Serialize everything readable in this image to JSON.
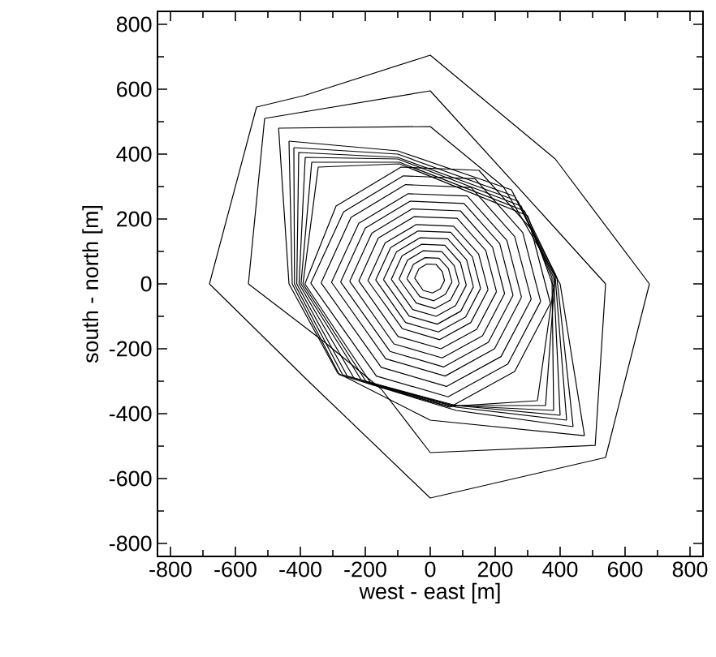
{
  "chart_data": {
    "type": "line",
    "xlabel": "west - east [m]",
    "ylabel": "south - north [m]",
    "xlim": [
      -840,
      840
    ],
    "ylim": [
      -840,
      840
    ],
    "xticks": [
      -800,
      -600,
      -400,
      -200,
      0,
      200,
      400,
      600,
      800
    ],
    "yticks": [
      -800,
      -600,
      -400,
      -200,
      0,
      200,
      400,
      600,
      800
    ],
    "series": [
      {
        "color": "#000000",
        "x": [
          -680,
          -535,
          -390,
          0,
          385,
          675
        ],
        "values": [
          0,
          545,
          580,
          705,
          385,
          0
        ]
      },
      {
        "color": "#000000",
        "x": [
          -680,
          -375,
          0,
          540,
          675
        ],
        "values": [
          0,
          -300,
          -660,
          -535,
          0
        ]
      },
      {
        "color": "#000000",
        "x": [
          -560,
          -510,
          0,
          350,
          540
        ],
        "values": [
          0,
          510,
          595,
          210,
          0
        ]
      },
      {
        "color": "#000000",
        "x": [
          -560,
          -325,
          -150,
          0,
          508,
          540
        ],
        "values": [
          0,
          -180,
          -325,
          -520,
          -498,
          0
        ]
      },
      {
        "color": "#000000",
        "x": [
          -467,
          0,
          225,
          400,
          475
        ],
        "values": [
          480,
          485,
          300,
          0,
          -468
        ]
      },
      {
        "color": "#000000",
        "x": [
          -467,
          -435,
          -285,
          0,
          475
        ],
        "values": [
          480,
          0,
          -275,
          -420,
          -468
        ]
      },
      {
        "color": "#000000",
        "x": [
          -435,
          -100,
          250,
          390,
          440
        ],
        "values": [
          440,
          410,
          290,
          20,
          -440
        ]
      },
      {
        "color": "#000000",
        "x": [
          -435,
          -425,
          -280,
          80,
          440
        ],
        "values": [
          440,
          0,
          -280,
          -390,
          -440
        ]
      },
      {
        "color": "#000000",
        "x": [
          -420,
          -100,
          260,
          385,
          420
        ],
        "values": [
          420,
          400,
          270,
          20,
          -420
        ]
      },
      {
        "color": "#000000",
        "x": [
          -420,
          -418,
          -270,
          80,
          420
        ],
        "values": [
          420,
          0,
          -280,
          -380,
          -420
        ]
      },
      {
        "color": "#000000",
        "x": [
          -411,
          -405,
          -100,
          270,
          380,
          400
        ],
        "values": [
          0,
          405,
          390,
          255,
          20,
          -405
        ]
      },
      {
        "color": "#000000",
        "x": [
          -411,
          -255,
          80,
          400
        ],
        "values": [
          0,
          -285,
          -375,
          -405
        ]
      },
      {
        "color": "#000000",
        "x": [
          -404,
          -385,
          -100,
          280,
          375,
          380
        ],
        "values": [
          0,
          390,
          385,
          240,
          20,
          -390
        ]
      },
      {
        "color": "#000000",
        "x": [
          -404,
          -235,
          70,
          380
        ],
        "values": [
          0,
          -290,
          -375,
          -390
        ]
      },
      {
        "color": "#000000",
        "x": [
          -398,
          -365,
          -95,
          290,
          385
        ],
        "values": [
          0,
          375,
          375,
          225,
          30
        ]
      },
      {
        "color": "#000000",
        "x": [
          -398,
          -210,
          65,
          355,
          385
        ],
        "values": [
          0,
          -300,
          -375,
          -375,
          30
        ]
      },
      {
        "color": "#000000",
        "x": [
          -392,
          -345,
          -95,
          300,
          380
        ],
        "values": [
          0,
          360,
          370,
          210,
          -10
        ]
      },
      {
        "color": "#000000",
        "x": [
          -392,
          -195,
          60,
          330,
          380
        ],
        "values": [
          0,
          -305,
          -378,
          -360,
          -10
        ]
      },
      {
        "color": "#000000",
        "x": [
          -386,
          -290,
          -90,
          150,
          310,
          370
        ],
        "values": [
          0,
          240,
          360,
          350,
          170,
          -60
        ]
      },
      {
        "color": "#000000",
        "x": [
          -386,
          -180,
          60,
          260,
          370
        ],
        "values": [
          0,
          -310,
          -380,
          -270,
          -60
        ]
      },
      {
        "color": "#000000",
        "x": [
          -368,
          -267,
          -83,
          138,
          285,
          340
        ],
        "values": [
          2,
          222,
          333,
          324,
          158,
          -54
        ]
      },
      {
        "color": "#000000",
        "x": [
          -368,
          -166,
          55,
          239,
          340
        ],
        "values": [
          2,
          -284,
          -348,
          -247,
          -54
        ]
      },
      {
        "color": "#000000",
        "x": [
          -336,
          -244,
          -76,
          126,
          260,
          311
        ],
        "values": [
          3,
          205,
          306,
          297,
          146,
          -47
        ]
      },
      {
        "color": "#000000",
        "x": [
          -336,
          -151,
          50,
          218,
          311
        ],
        "values": [
          3,
          -257,
          -316,
          -224,
          -47
        ]
      },
      {
        "color": "#000000",
        "x": [
          -304,
          -220,
          -68,
          114,
          236,
          281
        ],
        "values": [
          5,
          187,
          278,
          271,
          134,
          -41
        ]
      },
      {
        "color": "#000000",
        "x": [
          -304,
          -137,
          46,
          198,
          281
        ],
        "values": [
          5,
          -231,
          -284,
          -200,
          -41
        ]
      },
      {
        "color": "#000000",
        "x": [
          -276,
          -200,
          -62,
          104,
          214,
          255
        ],
        "values": [
          6,
          172,
          255,
          248,
          124,
          -35
        ]
      },
      {
        "color": "#000000",
        "x": [
          -276,
          -124,
          41,
          179,
          255
        ],
        "values": [
          6,
          -208,
          -256,
          -180,
          -35
        ]
      },
      {
        "color": "#000000",
        "x": [
          -248,
          -180,
          -56,
          93,
          192,
          229
        ],
        "values": [
          8,
          156,
          231,
          225,
          113,
          -30
        ]
      },
      {
        "color": "#000000",
        "x": [
          -248,
          -112,
          37,
          161,
          229
        ],
        "values": [
          8,
          -185,
          -228,
          -160,
          -30
        ]
      },
      {
        "color": "#000000",
        "x": [
          -220,
          -160,
          -50,
          83,
          171,
          204
        ],
        "values": [
          9,
          141,
          207,
          202,
          103,
          -24
        ]
      },
      {
        "color": "#000000",
        "x": [
          -220,
          -99,
          33,
          143,
          204
        ],
        "values": [
          9,
          -162,
          -200,
          -140,
          -24
        ]
      },
      {
        "color": "#000000",
        "x": [
          -192,
          -139,
          -43,
          72,
          149,
          178
        ],
        "values": [
          10,
          126,
          183,
          178,
          92,
          -18
        ]
      },
      {
        "color": "#000000",
        "x": [
          -192,
          -86,
          29,
          125,
          178
        ],
        "values": [
          10,
          -138,
          -172,
          -119,
          -18
        ]
      },
      {
        "color": "#000000",
        "x": [
          -168,
          -122,
          -38,
          63,
          130,
          155
        ],
        "values": [
          12,
          112,
          163,
          159,
          83,
          -14
        ]
      },
      {
        "color": "#000000",
        "x": [
          -168,
          -76,
          25,
          109,
          155
        ],
        "values": [
          12,
          -119,
          -148,
          -102,
          -14
        ]
      },
      {
        "color": "#000000",
        "x": [
          -144,
          -104,
          -32,
          54,
          112,
          133
        ],
        "values": [
          13,
          99,
          142,
          139,
          74,
          -9
        ]
      },
      {
        "color": "#000000",
        "x": [
          -144,
          -65,
          22,
          94,
          133
        ],
        "values": [
          13,
          -99,
          -124,
          -84,
          -9
        ]
      },
      {
        "color": "#000000",
        "x": [
          -120,
          -87,
          -27,
          45,
          93,
          111
        ],
        "values": [
          14,
          86,
          122,
          119,
          65,
          -4
        ]
      },
      {
        "color": "#000000",
        "x": [
          -120,
          -54,
          18,
          78,
          111
        ],
        "values": [
          14,
          -79,
          -100,
          -67,
          -4
        ]
      },
      {
        "color": "#000000",
        "x": [
          -96,
          -70,
          -22,
          36,
          74,
          89
        ],
        "values": [
          15,
          73,
          102,
          99,
          56,
          1
        ]
      },
      {
        "color": "#000000",
        "x": [
          -96,
          -43,
          14,
          62,
          89
        ],
        "values": [
          15,
          -59,
          -76,
          -50,
          1
        ]
      },
      {
        "color": "#000000",
        "x": [
          -72,
          -52,
          -16,
          27,
          56,
          67
        ],
        "values": [
          16,
          60,
          81,
          79,
          47,
          6
        ]
      },
      {
        "color": "#000000",
        "x": [
          -72,
          -32,
          11,
          47,
          67
        ],
        "values": [
          16,
          -39,
          -52,
          -32,
          6
        ]
      },
      {
        "color": "#000000",
        "x": [
          -48,
          -35,
          -11,
          18,
          37,
          44
        ],
        "values": [
          18,
          46,
          61,
          60,
          38,
          10
        ]
      },
      {
        "color": "#000000",
        "x": [
          -48,
          -22,
          7,
          31,
          44
        ],
        "values": [
          18,
          -20,
          -28,
          -15,
          10
        ]
      }
    ]
  }
}
